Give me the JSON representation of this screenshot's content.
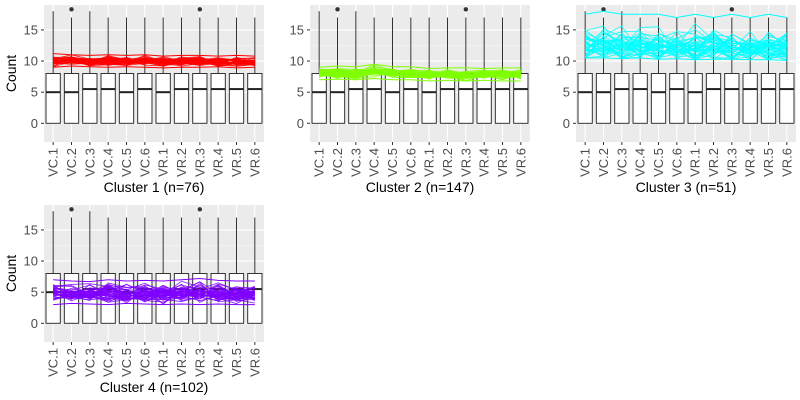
{
  "chart_data": [
    {
      "type": "box+line",
      "ylabel": "Count",
      "xlabel": "Cluster 1 (n=76)",
      "categories": [
        "VC.1",
        "VC.2",
        "VC.3",
        "VC.4",
        "VC.5",
        "VC.6",
        "VR.1",
        "VR.2",
        "VR.3",
        "VR.4",
        "VR.5",
        "VR.6"
      ],
      "ylim": [
        -3,
        19
      ],
      "yticks": [
        0,
        5,
        10,
        15
      ],
      "grid": true,
      "line_color": "#ff0000",
      "line_band": {
        "low": [
          9.0,
          9.2,
          9.1,
          9.0,
          9.1,
          9.0,
          8.9,
          9.0,
          9.0,
          9.1,
          8.9,
          9.0
        ],
        "high": [
          11.2,
          11.0,
          10.9,
          11.0,
          10.9,
          11.0,
          10.8,
          10.9,
          10.9,
          10.8,
          10.9,
          10.8
        ]
      },
      "line_center": [
        10.0,
        10.2,
        10.0,
        10.1,
        10.0,
        10.1,
        9.9,
        10.0,
        9.9,
        9.8,
        9.9,
        9.8
      ],
      "boxes": [
        {
          "min": 0,
          "q1": 0,
          "median": 5,
          "q3": 8,
          "max": 18,
          "outlier": null
        },
        {
          "min": 0,
          "q1": 0,
          "median": 5,
          "q3": 8,
          "max": 17,
          "outlier": 18.3
        },
        {
          "min": 0,
          "q1": 0,
          "median": 5.5,
          "q3": 8,
          "max": 18,
          "outlier": null
        },
        {
          "min": 0,
          "q1": 0,
          "median": 5.5,
          "q3": 8,
          "max": 17,
          "outlier": null
        },
        {
          "min": 0,
          "q1": 0,
          "median": 5,
          "q3": 8,
          "max": 17,
          "outlier": null
        },
        {
          "min": 0,
          "q1": 0,
          "median": 5.5,
          "q3": 8,
          "max": 17,
          "outlier": null
        },
        {
          "min": 0,
          "q1": 0,
          "median": 5,
          "q3": 8,
          "max": 17,
          "outlier": null
        },
        {
          "min": 0,
          "q1": 0,
          "median": 5.5,
          "q3": 8,
          "max": 17,
          "outlier": null
        },
        {
          "min": 0,
          "q1": 0,
          "median": 5.5,
          "q3": 8,
          "max": 17,
          "outlier": 18.3
        },
        {
          "min": 0,
          "q1": 0,
          "median": 5.5,
          "q3": 8,
          "max": 17,
          "outlier": null
        },
        {
          "min": 0,
          "q1": 0,
          "median": 5.5,
          "q3": 8,
          "max": 17,
          "outlier": null
        },
        {
          "min": 0,
          "q1": 0,
          "median": 5.5,
          "q3": 8,
          "max": 17,
          "outlier": null
        }
      ]
    },
    {
      "type": "box+line",
      "ylabel": "",
      "xlabel": "Cluster 2 (n=147)",
      "categories": [
        "VC.1",
        "VC.2",
        "VC.3",
        "VC.4",
        "VC.5",
        "VC.6",
        "VR.1",
        "VR.2",
        "VR.3",
        "VR.4",
        "VR.5",
        "VR.6"
      ],
      "ylim": [
        -3,
        19
      ],
      "yticks": [
        0,
        5,
        10,
        15
      ],
      "grid": true,
      "line_color": "#7fff00",
      "line_band": {
        "low": [
          7.0,
          7.1,
          7.0,
          7.2,
          7.0,
          7.0,
          6.8,
          6.9,
          6.8,
          6.9,
          6.8,
          6.8
        ],
        "high": [
          9.0,
          9.2,
          9.1,
          9.5,
          9.1,
          9.1,
          8.8,
          8.9,
          8.9,
          8.8,
          8.9,
          8.9
        ]
      },
      "line_center": [
        8.0,
        8.1,
        8.0,
        8.4,
        8.0,
        8.0,
        7.8,
        7.9,
        7.8,
        7.9,
        7.8,
        7.9
      ],
      "boxes": [
        {
          "min": 0,
          "q1": 0,
          "median": 5,
          "q3": 8,
          "max": 18,
          "outlier": null
        },
        {
          "min": 0,
          "q1": 0,
          "median": 5,
          "q3": 8,
          "max": 17,
          "outlier": 18.3
        },
        {
          "min": 0,
          "q1": 0,
          "median": 5.5,
          "q3": 8,
          "max": 18,
          "outlier": null
        },
        {
          "min": 0,
          "q1": 0,
          "median": 5.5,
          "q3": 8,
          "max": 17,
          "outlier": null
        },
        {
          "min": 0,
          "q1": 0,
          "median": 5,
          "q3": 8,
          "max": 17,
          "outlier": null
        },
        {
          "min": 0,
          "q1": 0,
          "median": 5.5,
          "q3": 8,
          "max": 17,
          "outlier": null
        },
        {
          "min": 0,
          "q1": 0,
          "median": 5,
          "q3": 8,
          "max": 17,
          "outlier": null
        },
        {
          "min": 0,
          "q1": 0,
          "median": 5.5,
          "q3": 8,
          "max": 17,
          "outlier": null
        },
        {
          "min": 0,
          "q1": 0,
          "median": 5.5,
          "q3": 8,
          "max": 17,
          "outlier": 18.3
        },
        {
          "min": 0,
          "q1": 0,
          "median": 5.5,
          "q3": 8,
          "max": 17,
          "outlier": null
        },
        {
          "min": 0,
          "q1": 0,
          "median": 5.5,
          "q3": 8,
          "max": 17,
          "outlier": null
        },
        {
          "min": 0,
          "q1": 0,
          "median": 5.5,
          "q3": 8,
          "max": 17,
          "outlier": null
        }
      ]
    },
    {
      "type": "box+line",
      "ylabel": "",
      "xlabel": "Cluster 3 (n=51)",
      "categories": [
        "VC.1",
        "VC.2",
        "VC.3",
        "VC.4",
        "VC.5",
        "VC.6",
        "VR.1",
        "VR.2",
        "VR.3",
        "VR.4",
        "VR.5",
        "VR.6"
      ],
      "ylim": [
        -3,
        19
      ],
      "yticks": [
        0,
        5,
        10,
        15
      ],
      "grid": true,
      "line_color": "#00ffff",
      "line_band": {
        "low": [
          10.5,
          10.5,
          10.4,
          10.5,
          10.3,
          10.4,
          10.2,
          10.3,
          10.3,
          10.2,
          10.2,
          10.1
        ],
        "high": [
          17.5,
          18.0,
          17.5,
          17.5,
          17.5,
          17.0,
          17.5,
          17.0,
          17.5,
          17.0,
          17.5,
          17.0
        ]
      },
      "line_center": [
        12.5,
        12.6,
        12.4,
        12.5,
        12.3,
        12.4,
        12.2,
        12.3,
        12.3,
        12.2,
        12.1,
        12.0
      ],
      "boxes": [
        {
          "min": 0,
          "q1": 0,
          "median": 5,
          "q3": 8,
          "max": 18,
          "outlier": null
        },
        {
          "min": 0,
          "q1": 0,
          "median": 5,
          "q3": 8,
          "max": 17,
          "outlier": 18.3
        },
        {
          "min": 0,
          "q1": 0,
          "median": 5.5,
          "q3": 8,
          "max": 18,
          "outlier": null
        },
        {
          "min": 0,
          "q1": 0,
          "median": 5.5,
          "q3": 8,
          "max": 17,
          "outlier": null
        },
        {
          "min": 0,
          "q1": 0,
          "median": 5,
          "q3": 8,
          "max": 17,
          "outlier": null
        },
        {
          "min": 0,
          "q1": 0,
          "median": 5.5,
          "q3": 8,
          "max": 17,
          "outlier": null
        },
        {
          "min": 0,
          "q1": 0,
          "median": 5,
          "q3": 8,
          "max": 17,
          "outlier": null
        },
        {
          "min": 0,
          "q1": 0,
          "median": 5.5,
          "q3": 8,
          "max": 17,
          "outlier": null
        },
        {
          "min": 0,
          "q1": 0,
          "median": 5.5,
          "q3": 8,
          "max": 17,
          "outlier": 18.3
        },
        {
          "min": 0,
          "q1": 0,
          "median": 5.5,
          "q3": 8,
          "max": 17,
          "outlier": null
        },
        {
          "min": 0,
          "q1": 0,
          "median": 5.5,
          "q3": 8,
          "max": 17,
          "outlier": null
        },
        {
          "min": 0,
          "q1": 0,
          "median": 5.5,
          "q3": 8,
          "max": 17,
          "outlier": null
        }
      ]
    },
    {
      "type": "box+line",
      "ylabel": "Count",
      "xlabel": "Cluster 4 (n=102)",
      "categories": [
        "VC.1",
        "VC.2",
        "VC.3",
        "VC.4",
        "VC.5",
        "VC.6",
        "VR.1",
        "VR.2",
        "VR.3",
        "VR.4",
        "VR.5",
        "VR.6"
      ],
      "ylim": [
        -3,
        19
      ],
      "yticks": [
        0,
        5,
        10,
        15
      ],
      "grid": true,
      "line_color": "#7f00ff",
      "line_band": {
        "low": [
          3.0,
          3.2,
          3.1,
          3.0,
          3.2,
          3.1,
          3.0,
          3.1,
          3.0,
          3.1,
          3.0,
          3.0
        ],
        "high": [
          7.0,
          6.8,
          6.7,
          7.0,
          6.8,
          6.9,
          6.8,
          7.0,
          7.2,
          6.9,
          6.8,
          6.8
        ]
      },
      "line_center": [
        5.0,
        4.6,
        4.8,
        4.9,
        4.7,
        4.8,
        4.7,
        4.9,
        5.0,
        4.8,
        4.7,
        4.8
      ],
      "boxes": [
        {
          "min": 0,
          "q1": 0,
          "median": 5,
          "q3": 8,
          "max": 18,
          "outlier": null
        },
        {
          "min": 0,
          "q1": 0,
          "median": 5,
          "q3": 8,
          "max": 17,
          "outlier": 18.3
        },
        {
          "min": 0,
          "q1": 0,
          "median": 5.5,
          "q3": 8,
          "max": 18,
          "outlier": null
        },
        {
          "min": 0,
          "q1": 0,
          "median": 5.5,
          "q3": 8,
          "max": 17,
          "outlier": null
        },
        {
          "min": 0,
          "q1": 0,
          "median": 5,
          "q3": 8,
          "max": 17,
          "outlier": null
        },
        {
          "min": 0,
          "q1": 0,
          "median": 5.5,
          "q3": 8,
          "max": 17,
          "outlier": null
        },
        {
          "min": 0,
          "q1": 0,
          "median": 5,
          "q3": 8,
          "max": 17,
          "outlier": null
        },
        {
          "min": 0,
          "q1": 0,
          "median": 5.5,
          "q3": 8,
          "max": 17,
          "outlier": null
        },
        {
          "min": 0,
          "q1": 0,
          "median": 5.5,
          "q3": 8,
          "max": 17,
          "outlier": 18.3
        },
        {
          "min": 0,
          "q1": 0,
          "median": 5.5,
          "q3": 8,
          "max": 17,
          "outlier": null
        },
        {
          "min": 0,
          "q1": 0,
          "median": 5.5,
          "q3": 8,
          "max": 17,
          "outlier": null
        },
        {
          "min": 0,
          "q1": 0,
          "median": 5.5,
          "q3": 8,
          "max": 17,
          "outlier": null
        }
      ]
    }
  ]
}
